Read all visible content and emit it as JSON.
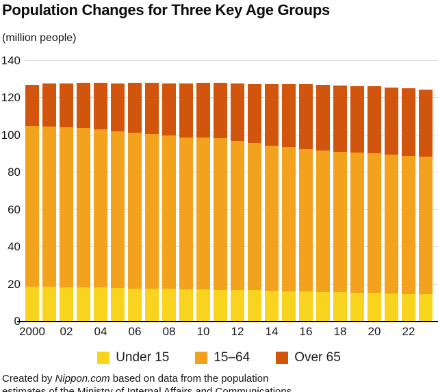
{
  "header": {
    "title": "Population Changes for Three Key Age Groups",
    "unit": "(million people)"
  },
  "chart_data": {
    "type": "bar",
    "stacked": true,
    "title": "Population Changes for Three Key Age Groups",
    "ylabel": "(million people)",
    "ylim": [
      0,
      140
    ],
    "ytick_step": 20,
    "ytick_labels": [
      "0",
      "20",
      "40",
      "60",
      "80",
      "100",
      "120",
      "140"
    ],
    "grid": true,
    "legend_position": "bottom",
    "years": [
      2000,
      2001,
      2002,
      2003,
      2004,
      2005,
      2006,
      2007,
      2008,
      2009,
      2010,
      2011,
      2012,
      2013,
      2014,
      2015,
      2016,
      2017,
      2018,
      2019,
      2020,
      2021,
      2022,
      2023
    ],
    "x_tick_labels": [
      "2000",
      "02",
      "04",
      "06",
      "08",
      "10",
      "12",
      "14",
      "16",
      "18",
      "20",
      "22"
    ],
    "series": [
      {
        "name": "Under 15",
        "color": "#F9D41E",
        "values": [
          18.5,
          18.4,
          18.2,
          18.1,
          17.9,
          17.5,
          17.4,
          17.3,
          17.2,
          17.0,
          16.8,
          16.7,
          16.5,
          16.4,
          16.2,
          16.0,
          15.8,
          15.6,
          15.4,
          15.2,
          15.0,
          14.8,
          14.5,
          14.2
        ]
      },
      {
        "name": "15–64",
        "color": "#F3A21E",
        "values": [
          86.2,
          86.1,
          85.7,
          85.4,
          85.1,
          84.4,
          83.7,
          83.0,
          82.3,
          81.5,
          81.7,
          81.3,
          80.2,
          79.0,
          77.9,
          77.3,
          76.6,
          76.0,
          75.5,
          75.1,
          75.1,
          74.5,
          74.2,
          74.0
        ]
      },
      {
        "name": "Over 65",
        "color": "#D2550D",
        "values": [
          22.0,
          22.9,
          23.6,
          24.3,
          24.9,
          25.8,
          26.6,
          27.5,
          28.2,
          29.0,
          29.5,
          29.8,
          30.8,
          31.9,
          33.0,
          33.9,
          34.6,
          35.2,
          35.6,
          35.9,
          36.0,
          36.2,
          36.2,
          36.2
        ]
      }
    ],
    "colors": {
      "grid": "#dbdbdb",
      "axis": "#000000"
    }
  },
  "footer": {
    "prefix": "Created by ",
    "source_italic": "Nippon.com",
    "suffix": " based on data from the population estimates of the Ministry of Internal Affairs and Communications."
  }
}
